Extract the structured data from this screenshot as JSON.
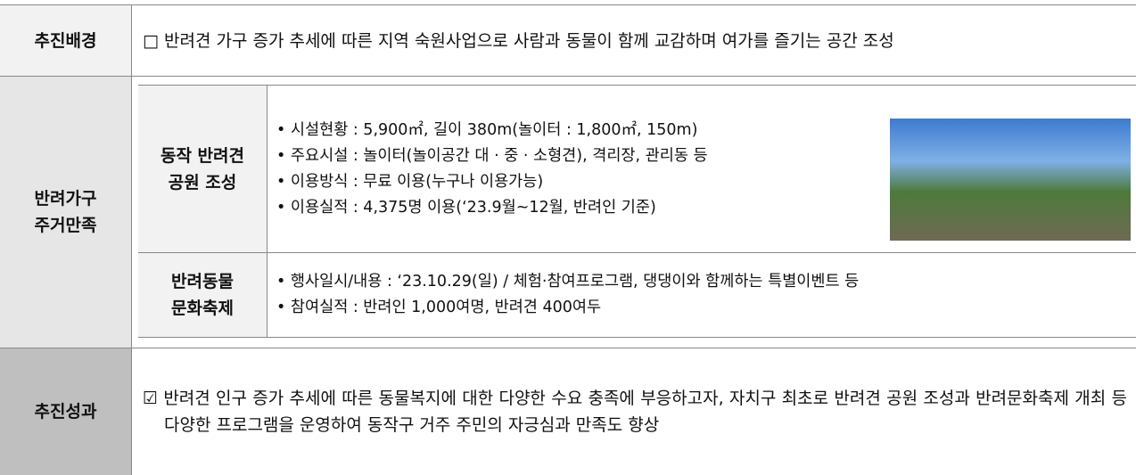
{
  "background": {
    "label": "추진배경",
    "text": "□ 반려견 가구 증가 추세에 따른 지역 숙원사업으로 사람과 동물이 함께 교감하며 여가를 즐기는 공간 조성"
  },
  "pet_housing": {
    "label": [
      "반려가구",
      "주거만족"
    ],
    "park": {
      "label": [
        "동작 반려견",
        "공원 조성"
      ],
      "items": [
        "시설현황 : 5,900㎡, 길이 380m(놀이터 : 1,800㎡, 150m)",
        "주요시설 : 놀이터(놀이공간 대 · 중 · 소형견), 격리장, 관리동 등",
        "이용방식 : 무료 이용(누구나 이용가능)",
        "이용실적 : 4,375명 이용(‘23.9월~12월, 반려인 기준)"
      ]
    },
    "festival": {
      "label": [
        "반려동물",
        "문화축제"
      ],
      "items": [
        "행사일시/내용 : ‘23.10.29(일) / 체험·참여프로그램, 댕댕이와 함께하는 특별이벤트 등",
        "참여실적 : 반려인 1,000여명, 반려견 400여두"
      ]
    }
  },
  "result": {
    "label": "추진성과",
    "text": "☑ 반려견 인구 증가 추세에 따른 동물복지에 대한 다양한 수요 충족에 부응하고자, 자치구 최초로 반려견 공원 조성과 반려문화축제 개최 등 다양한 프로그램을 운영하여 동작구 거주 주민의 자긍심과 만족도 향상"
  }
}
